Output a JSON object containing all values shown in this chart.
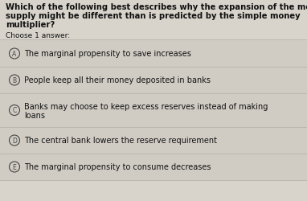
{
  "question_line1": "Which of the following best describes why the expansion of the money",
  "question_line2": "supply might be different than is predicted by the simple money",
  "question_line3": "multiplier?",
  "instruction": "Choose 1 answer:",
  "options": [
    {
      "label": "A",
      "text": "The marginal propensity to save increases"
    },
    {
      "label": "B",
      "text": "People keep all their money deposited in banks"
    },
    {
      "label": "C",
      "text1": "Banks may choose to keep excess reserves instead of making",
      "text2": "loans"
    },
    {
      "label": "D",
      "text": "The central bank lowers the reserve requirement"
    },
    {
      "label": "E",
      "text": "The marginal propensity to consume decreases"
    }
  ],
  "bg_color": "#d8d4cc",
  "text_color": "#111111",
  "option_bg": "#d0ccc4",
  "divider_color": "#b8b4ac",
  "circle_color": "#444444",
  "question_fontsize": 7.2,
  "instruction_fontsize": 6.5,
  "option_fontsize": 7.0
}
